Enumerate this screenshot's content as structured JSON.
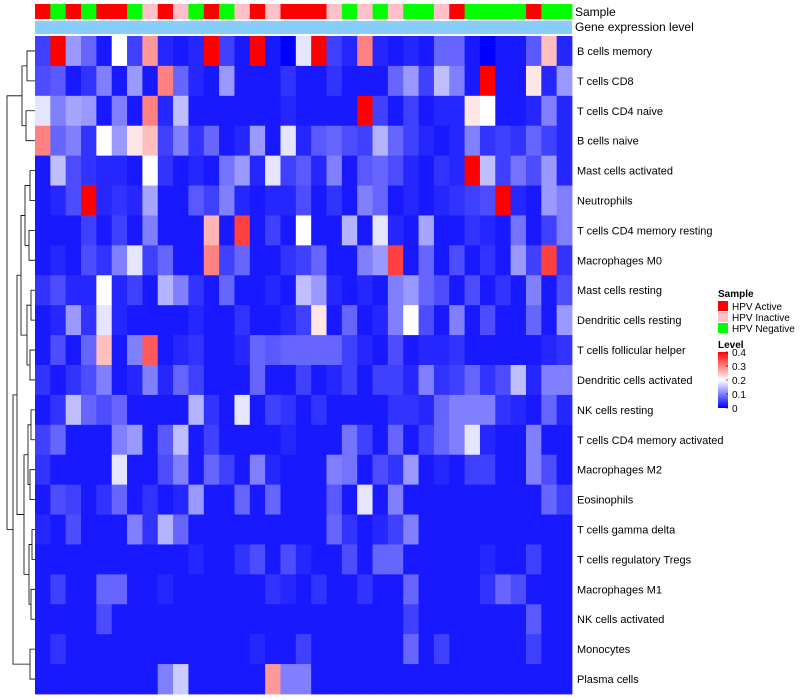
{
  "chart_data": {
    "type": "heatmap",
    "title": "",
    "annotation_tracks": [
      "Sample",
      "Gene expression level"
    ],
    "sample_groups": [
      {
        "name": "HPV Active",
        "color": "#FF0000"
      },
      {
        "name": "HPV Inactive",
        "color": "#FFC0CB"
      },
      {
        "name": "HPV Negative",
        "color": "#00FF00"
      }
    ],
    "sample_annotation": [
      0,
      2,
      0,
      2,
      0,
      0,
      2,
      1,
      0,
      1,
      2,
      0,
      2,
      1,
      0,
      1,
      0,
      0,
      0,
      1,
      2,
      1,
      2,
      1,
      2,
      2,
      1,
      0,
      2,
      2,
      2,
      2,
      0,
      2,
      2
    ],
    "gene_expression_color": "#87CEFA",
    "rows": [
      "B cells memory",
      "T cells CD8",
      "T cells CD4 naive",
      "B cells naive",
      "Mast cells activated",
      "Neutrophils",
      "T cells CD4 memory resting",
      "Macrophages M0",
      "Mast cells resting",
      "Dendritic cells resting",
      "T cells follicular helper",
      "Dendritic cells activated",
      "NK cells resting",
      "T cells CD4 memory activated",
      "Macrophages M2",
      "Eosinophils",
      "T cells gamma delta",
      "T cells regulatory  Tregs",
      "Macrophages M1",
      "NK cells activated",
      "Monocytes",
      "Plasma cells"
    ],
    "values": [
      [
        0.05,
        0.4,
        0.12,
        0.08,
        0.02,
        0.2,
        0.05,
        0.28,
        0.03,
        0.02,
        0.03,
        0.4,
        0.05,
        0.02,
        0.4,
        0.02,
        0.0,
        0.18,
        0.4,
        0.05,
        0.03,
        0.3,
        0.03,
        0.02,
        0.03,
        0.02,
        0.08,
        0.08,
        0.02,
        0.0,
        0.02,
        0.02,
        0.07,
        0.25,
        0.03
      ],
      [
        0.06,
        0.07,
        0.02,
        0.04,
        0.1,
        0.02,
        0.12,
        0.02,
        0.3,
        0.08,
        0.03,
        0.02,
        0.12,
        0.02,
        0.02,
        0.02,
        0.04,
        0.02,
        0.02,
        0.04,
        0.02,
        0.02,
        0.02,
        0.08,
        0.12,
        0.05,
        0.15,
        0.1,
        0.02,
        0.4,
        0.02,
        0.02,
        0.22,
        0.03,
        0.12
      ],
      [
        0.18,
        0.1,
        0.13,
        0.12,
        0.02,
        0.1,
        0.02,
        0.3,
        0.03,
        0.15,
        0.02,
        0.02,
        0.02,
        0.02,
        0.02,
        0.02,
        0.03,
        0.02,
        0.02,
        0.02,
        0.02,
        0.4,
        0.05,
        0.02,
        0.05,
        0.02,
        0.03,
        0.03,
        0.22,
        0.2,
        0.02,
        0.02,
        0.03,
        0.1,
        0.03
      ],
      [
        0.3,
        0.08,
        0.1,
        0.04,
        0.2,
        0.12,
        0.22,
        0.25,
        0.05,
        0.1,
        0.04,
        0.08,
        0.02,
        0.03,
        0.12,
        0.02,
        0.18,
        0.03,
        0.07,
        0.08,
        0.06,
        0.05,
        0.14,
        0.08,
        0.05,
        0.03,
        0.02,
        0.03,
        0.1,
        0.04,
        0.05,
        0.04,
        0.08,
        0.05,
        0.03
      ],
      [
        0.02,
        0.15,
        0.06,
        0.04,
        0.03,
        0.03,
        0.02,
        0.2,
        0.04,
        0.02,
        0.03,
        0.02,
        0.09,
        0.12,
        0.03,
        0.18,
        0.05,
        0.07,
        0.03,
        0.1,
        0.02,
        0.07,
        0.08,
        0.06,
        0.03,
        0.02,
        0.04,
        0.03,
        0.4,
        0.15,
        0.05,
        0.09,
        0.06,
        0.12,
        0.03
      ],
      [
        0.02,
        0.03,
        0.06,
        0.4,
        0.03,
        0.04,
        0.03,
        0.13,
        0.02,
        0.02,
        0.07,
        0.05,
        0.1,
        0.03,
        0.02,
        0.03,
        0.03,
        0.06,
        0.02,
        0.04,
        0.02,
        0.1,
        0.08,
        0.02,
        0.03,
        0.02,
        0.03,
        0.04,
        0.05,
        0.06,
        0.4,
        0.03,
        0.02,
        0.12,
        0.1
      ],
      [
        0.02,
        0.02,
        0.02,
        0.05,
        0.02,
        0.05,
        0.02,
        0.1,
        0.02,
        0.02,
        0.02,
        0.26,
        0.02,
        0.35,
        0.02,
        0.05,
        0.02,
        0.2,
        0.02,
        0.02,
        0.14,
        0.02,
        0.18,
        0.03,
        0.02,
        0.13,
        0.02,
        0.02,
        0.04,
        0.03,
        0.02,
        0.09,
        0.02,
        0.05,
        0.1
      ],
      [
        0.02,
        0.03,
        0.02,
        0.06,
        0.04,
        0.1,
        0.18,
        0.05,
        0.08,
        0.02,
        0.02,
        0.3,
        0.05,
        0.08,
        0.02,
        0.02,
        0.04,
        0.05,
        0.08,
        0.02,
        0.02,
        0.1,
        0.12,
        0.35,
        0.02,
        0.08,
        0.02,
        0.06,
        0.02,
        0.04,
        0.02,
        0.12,
        0.05,
        0.35,
        0.04
      ],
      [
        0.04,
        0.06,
        0.03,
        0.03,
        0.2,
        0.03,
        0.05,
        0.02,
        0.14,
        0.1,
        0.04,
        0.02,
        0.08,
        0.02,
        0.02,
        0.03,
        0.02,
        0.15,
        0.12,
        0.03,
        0.02,
        0.03,
        0.02,
        0.1,
        0.12,
        0.08,
        0.06,
        0.02,
        0.06,
        0.02,
        0.04,
        0.02,
        0.1,
        0.02,
        0.06
      ],
      [
        0.02,
        0.03,
        0.12,
        0.04,
        0.18,
        0.03,
        0.02,
        0.02,
        0.02,
        0.02,
        0.03,
        0.02,
        0.02,
        0.04,
        0.02,
        0.02,
        0.03,
        0.05,
        0.22,
        0.02,
        0.08,
        0.02,
        0.03,
        0.1,
        0.2,
        0.06,
        0.02,
        0.1,
        0.02,
        0.06,
        0.02,
        0.02,
        0.08,
        0.02,
        0.12
      ],
      [
        0.02,
        0.06,
        0.02,
        0.08,
        0.25,
        0.02,
        0.1,
        0.33,
        0.02,
        0.03,
        0.04,
        0.02,
        0.02,
        0.03,
        0.08,
        0.07,
        0.08,
        0.08,
        0.08,
        0.08,
        0.05,
        0.03,
        0.02,
        0.06,
        0.02,
        0.03,
        0.03,
        0.04,
        0.02,
        0.02,
        0.02,
        0.02,
        0.02,
        0.03,
        0.04
      ],
      [
        0.04,
        0.02,
        0.04,
        0.06,
        0.1,
        0.02,
        0.03,
        0.1,
        0.03,
        0.08,
        0.05,
        0.02,
        0.02,
        0.02,
        0.08,
        0.02,
        0.02,
        0.05,
        0.02,
        0.03,
        0.05,
        0.02,
        0.05,
        0.05,
        0.03,
        0.1,
        0.04,
        0.05,
        0.08,
        0.04,
        0.06,
        0.15,
        0.03,
        0.1,
        0.1
      ],
      [
        0.02,
        0.04,
        0.15,
        0.08,
        0.06,
        0.08,
        0.02,
        0.02,
        0.02,
        0.02,
        0.14,
        0.04,
        0.02,
        0.18,
        0.02,
        0.05,
        0.04,
        0.02,
        0.04,
        0.02,
        0.02,
        0.02,
        0.02,
        0.04,
        0.04,
        0.03,
        0.08,
        0.1,
        0.1,
        0.1,
        0.04,
        0.03,
        0.02,
        0.08,
        0.03
      ],
      [
        0.05,
        0.08,
        0.02,
        0.02,
        0.02,
        0.1,
        0.12,
        0.02,
        0.07,
        0.15,
        0.02,
        0.05,
        0.02,
        0.02,
        0.02,
        0.02,
        0.03,
        0.02,
        0.02,
        0.02,
        0.09,
        0.05,
        0.02,
        0.08,
        0.02,
        0.05,
        0.08,
        0.1,
        0.18,
        0.03,
        0.02,
        0.02,
        0.1,
        0.02,
        0.02
      ],
      [
        0.04,
        0.02,
        0.02,
        0.02,
        0.02,
        0.18,
        0.02,
        0.02,
        0.06,
        0.1,
        0.02,
        0.08,
        0.05,
        0.02,
        0.1,
        0.03,
        0.02,
        0.02,
        0.02,
        0.1,
        0.09,
        0.02,
        0.06,
        0.04,
        0.12,
        0.02,
        0.03,
        0.02,
        0.05,
        0.05,
        0.02,
        0.02,
        0.1,
        0.06,
        0.02
      ],
      [
        0.02,
        0.06,
        0.05,
        0.02,
        0.04,
        0.08,
        0.02,
        0.04,
        0.02,
        0.03,
        0.12,
        0.02,
        0.02,
        0.08,
        0.02,
        0.08,
        0.02,
        0.02,
        0.02,
        0.07,
        0.02,
        0.18,
        0.02,
        0.1,
        0.02,
        0.02,
        0.02,
        0.02,
        0.02,
        0.02,
        0.02,
        0.02,
        0.02,
        0.08,
        0.05
      ],
      [
        0.03,
        0.02,
        0.06,
        0.02,
        0.02,
        0.02,
        0.1,
        0.04,
        0.14,
        0.08,
        0.02,
        0.02,
        0.02,
        0.02,
        0.02,
        0.02,
        0.02,
        0.02,
        0.02,
        0.08,
        0.04,
        0.02,
        0.03,
        0.05,
        0.1,
        0.02,
        0.02,
        0.02,
        0.02,
        0.02,
        0.02,
        0.02,
        0.02,
        0.02,
        0.02
      ],
      [
        0.02,
        0.02,
        0.02,
        0.02,
        0.02,
        0.02,
        0.02,
        0.02,
        0.02,
        0.02,
        0.03,
        0.02,
        0.02,
        0.04,
        0.06,
        0.02,
        0.06,
        0.03,
        0.02,
        0.02,
        0.06,
        0.02,
        0.08,
        0.08,
        0.02,
        0.02,
        0.02,
        0.02,
        0.02,
        0.03,
        0.02,
        0.02,
        0.05,
        0.02,
        0.02
      ],
      [
        0.02,
        0.05,
        0.02,
        0.02,
        0.08,
        0.08,
        0.02,
        0.02,
        0.03,
        0.02,
        0.02,
        0.02,
        0.02,
        0.02,
        0.02,
        0.04,
        0.03,
        0.02,
        0.04,
        0.02,
        0.02,
        0.04,
        0.02,
        0.02,
        0.08,
        0.02,
        0.02,
        0.02,
        0.02,
        0.04,
        0.08,
        0.06,
        0.02,
        0.02,
        0.02
      ],
      [
        0.02,
        0.02,
        0.02,
        0.02,
        0.06,
        0.02,
        0.02,
        0.02,
        0.02,
        0.02,
        0.02,
        0.02,
        0.02,
        0.02,
        0.02,
        0.02,
        0.02,
        0.02,
        0.02,
        0.02,
        0.02,
        0.02,
        0.02,
        0.02,
        0.05,
        0.02,
        0.02,
        0.02,
        0.02,
        0.02,
        0.02,
        0.02,
        0.07,
        0.02,
        0.02
      ],
      [
        0.02,
        0.04,
        0.02,
        0.02,
        0.02,
        0.02,
        0.02,
        0.02,
        0.02,
        0.02,
        0.02,
        0.02,
        0.02,
        0.02,
        0.03,
        0.02,
        0.02,
        0.05,
        0.02,
        0.02,
        0.02,
        0.02,
        0.02,
        0.02,
        0.08,
        0.02,
        0.05,
        0.02,
        0.02,
        0.02,
        0.02,
        0.02,
        0.05,
        0.02,
        0.02
      ],
      [
        0.02,
        0.02,
        0.02,
        0.02,
        0.02,
        0.02,
        0.02,
        0.02,
        0.1,
        0.16,
        0.02,
        0.02,
        0.02,
        0.02,
        0.02,
        0.28,
        0.1,
        0.1,
        0.02,
        0.02,
        0.02,
        0.02,
        0.02,
        0.02,
        0.02,
        0.02,
        0.02,
        0.02,
        0.02,
        0.02,
        0.02,
        0.02,
        0.02,
        0.02,
        0.02
      ]
    ],
    "legend": {
      "sample_title": "Sample",
      "level_title": "Level",
      "level_ticks": [
        "0.4",
        "0.3",
        "0.2",
        "0.1",
        "0"
      ],
      "level_tick_values": [
        0.4,
        0.3,
        0.2,
        0.1,
        0
      ],
      "position": "right"
    },
    "color_scale": {
      "low": "#0000FF",
      "mid": "#FFFFFF",
      "high": "#FF0000",
      "min": 0,
      "max": 0.4
    },
    "dendrogram": "row"
  }
}
